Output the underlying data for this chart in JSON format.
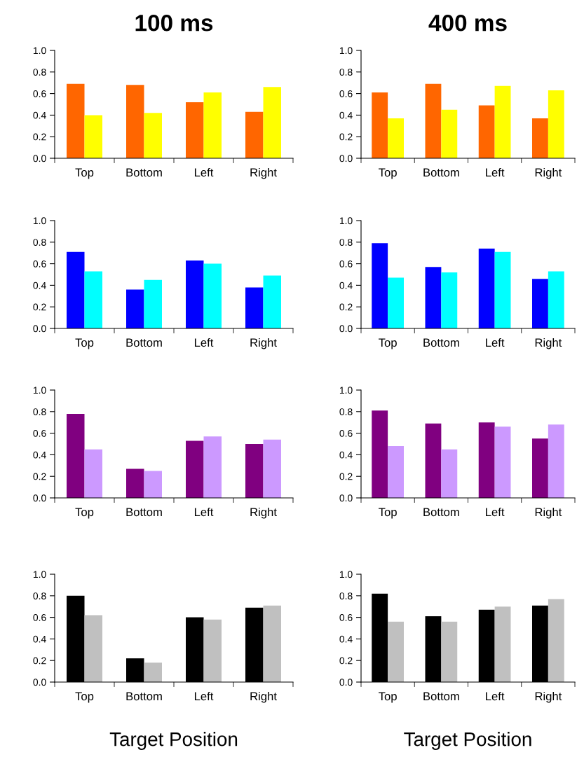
{
  "chart_data": [
    {
      "type": "bar",
      "title": "100 ms",
      "categories": [
        "Top",
        "Bottom",
        "Left",
        "Right"
      ],
      "series": [
        {
          "color": "#ff6600",
          "values": [
            0.69,
            0.68,
            0.52,
            0.43
          ]
        },
        {
          "color": "#ffff00",
          "values": [
            0.4,
            0.42,
            0.61,
            0.66
          ]
        }
      ],
      "ylim": [
        0,
        1
      ],
      "yticks": [
        {
          "value": 0,
          "label": "0.0"
        },
        {
          "value": 0.2,
          "label": "0.2"
        },
        {
          "value": 0.4,
          "label": "0.4"
        },
        {
          "value": 0.6,
          "label": "0.6"
        },
        {
          "value": 0.8,
          "label": "0.8"
        },
        {
          "value": 1,
          "label": "1.0"
        }
      ]
    },
    {
      "type": "bar",
      "title": "400 ms",
      "categories": [
        "Top",
        "Bottom",
        "Left",
        "Right"
      ],
      "series": [
        {
          "color": "#ff6600",
          "values": [
            0.61,
            0.69,
            0.49,
            0.37
          ]
        },
        {
          "color": "#ffff00",
          "values": [
            0.37,
            0.45,
            0.67,
            0.63
          ]
        }
      ],
      "ylim": [
        0,
        1
      ],
      "yticks": [
        {
          "value": 0,
          "label": "0.0"
        },
        {
          "value": 0.2,
          "label": "0.2"
        },
        {
          "value": 0.4,
          "label": "0.4"
        },
        {
          "value": 0.6,
          "label": "0.6"
        },
        {
          "value": 0.8,
          "label": "0.8"
        },
        {
          "value": 1,
          "label": "1.0"
        }
      ]
    },
    {
      "type": "bar",
      "categories": [
        "Top",
        "Bottom",
        "Left",
        "Right"
      ],
      "series": [
        {
          "color": "#0000ff",
          "values": [
            0.71,
            0.36,
            0.63,
            0.38
          ]
        },
        {
          "color": "#00ffff",
          "values": [
            0.53,
            0.45,
            0.6,
            0.49
          ]
        }
      ],
      "ylim": [
        0,
        1
      ],
      "yticks": [
        {
          "value": 0,
          "label": "0.0"
        },
        {
          "value": 0.2,
          "label": "0.2"
        },
        {
          "value": 0.4,
          "label": "0.4"
        },
        {
          "value": 0.6,
          "label": "0.6"
        },
        {
          "value": 0.8,
          "label": "0.8"
        },
        {
          "value": 1,
          "label": "1.0"
        }
      ]
    },
    {
      "type": "bar",
      "categories": [
        "Top",
        "Bottom",
        "Left",
        "Right"
      ],
      "series": [
        {
          "color": "#0000ff",
          "values": [
            0.79,
            0.57,
            0.74,
            0.46
          ]
        },
        {
          "color": "#00ffff",
          "values": [
            0.47,
            0.52,
            0.71,
            0.53
          ]
        }
      ],
      "ylim": [
        0,
        1
      ],
      "yticks": [
        {
          "value": 0,
          "label": "0.0"
        },
        {
          "value": 0.2,
          "label": "0.2"
        },
        {
          "value": 0.4,
          "label": "0.4"
        },
        {
          "value": 0.6,
          "label": "0.6"
        },
        {
          "value": 0.8,
          "label": "0.8"
        },
        {
          "value": 1,
          "label": "1.0"
        }
      ]
    },
    {
      "type": "bar",
      "categories": [
        "Top",
        "Bottom",
        "Left",
        "Right"
      ],
      "series": [
        {
          "color": "#800080",
          "values": [
            0.78,
            0.27,
            0.53,
            0.5
          ]
        },
        {
          "color": "#cc99ff",
          "values": [
            0.45,
            0.25,
            0.57,
            0.54
          ]
        }
      ],
      "ylim": [
        0,
        1
      ],
      "yticks": [
        {
          "value": 0,
          "label": "0.0"
        },
        {
          "value": 0.2,
          "label": "0.2"
        },
        {
          "value": 0.4,
          "label": "0.4"
        },
        {
          "value": 0.6,
          "label": "0.6"
        },
        {
          "value": 0.8,
          "label": "0.8"
        },
        {
          "value": 1,
          "label": "1.0"
        }
      ]
    },
    {
      "type": "bar",
      "categories": [
        "Top",
        "Bottom",
        "Left",
        "Right"
      ],
      "series": [
        {
          "color": "#800080",
          "values": [
            0.81,
            0.69,
            0.7,
            0.55
          ]
        },
        {
          "color": "#cc99ff",
          "values": [
            0.48,
            0.45,
            0.66,
            0.68
          ]
        }
      ],
      "ylim": [
        0,
        1
      ],
      "yticks": [
        {
          "value": 0,
          "label": "0.0"
        },
        {
          "value": 0.2,
          "label": "0.2"
        },
        {
          "value": 0.4,
          "label": "0.4"
        },
        {
          "value": 0.6,
          "label": "0.6"
        },
        {
          "value": 0.8,
          "label": "0.8"
        },
        {
          "value": 1,
          "label": "1.0"
        }
      ]
    },
    {
      "type": "bar",
      "xlabel": "Target Position",
      "categories": [
        "Top",
        "Bottom",
        "Left",
        "Right"
      ],
      "series": [
        {
          "color": "#000000",
          "values": [
            0.8,
            0.22,
            0.6,
            0.69
          ]
        },
        {
          "color": "#c0c0c0",
          "values": [
            0.62,
            0.18,
            0.58,
            0.71
          ]
        }
      ],
      "ylim": [
        0,
        1
      ],
      "yticks": [
        {
          "value": 0,
          "label": "0.0"
        },
        {
          "value": 0.2,
          "label": "0.2"
        },
        {
          "value": 0.4,
          "label": "0.4"
        },
        {
          "value": 0.6,
          "label": "0.6"
        },
        {
          "value": 0.8,
          "label": "0.8"
        },
        {
          "value": 1,
          "label": "1.0"
        }
      ]
    },
    {
      "type": "bar",
      "xlabel": "Target Position",
      "categories": [
        "Top",
        "Bottom",
        "Left",
        "Right"
      ],
      "series": [
        {
          "color": "#000000",
          "values": [
            0.82,
            0.61,
            0.67,
            0.71
          ]
        },
        {
          "color": "#c0c0c0",
          "values": [
            0.56,
            0.56,
            0.7,
            0.77
          ]
        }
      ],
      "ylim": [
        0,
        1
      ],
      "yticks": [
        {
          "value": 0,
          "label": "0.0"
        },
        {
          "value": 0.2,
          "label": "0.2"
        },
        {
          "value": 0.4,
          "label": "0.4"
        },
        {
          "value": 0.6,
          "label": "0.6"
        },
        {
          "value": 0.8,
          "label": "0.8"
        },
        {
          "value": 1,
          "label": "1.0"
        }
      ]
    }
  ]
}
